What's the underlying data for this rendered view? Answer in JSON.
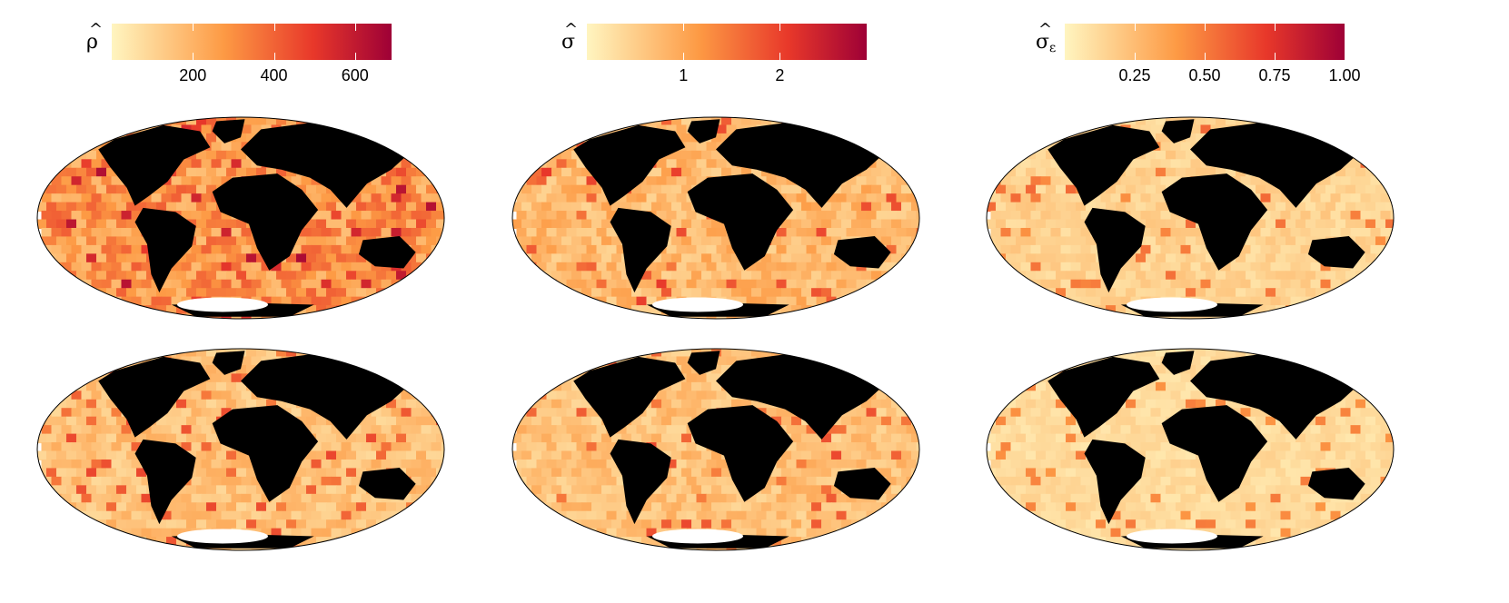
{
  "colorbars": [
    {
      "symbol": "ρ",
      "subscript": "",
      "tick_labels": [
        "200",
        "400",
        "600"
      ],
      "ticks": [
        200,
        400,
        600
      ],
      "min": 0,
      "max": 690
    },
    {
      "symbol": "σ",
      "subscript": "",
      "tick_labels": [
        "1",
        "2"
      ],
      "ticks": [
        1,
        2
      ],
      "min": 0,
      "max": 2.9
    },
    {
      "symbol": "σ",
      "subscript": "ε",
      "tick_labels": [
        "0.25",
        "0.50",
        "0.75",
        "1.00"
      ],
      "ticks": [
        0.25,
        0.5,
        0.75,
        1.0
      ],
      "min": 0,
      "max": 1.0
    }
  ],
  "colors": {
    "scale_low": "#fff5c0",
    "scale_mid": "#fd9a44",
    "scale_high": "#e8382a",
    "scale_max": "#9e0036",
    "land": "#000000",
    "no_data": "#ffffff"
  },
  "projection": "Mollweide",
  "maps": [
    {
      "row": 1,
      "variable": "rho",
      "intensity": 0.55
    },
    {
      "row": 1,
      "variable": "sigma",
      "intensity": 0.35
    },
    {
      "row": 1,
      "variable": "sigma_eps",
      "intensity": 0.2
    },
    {
      "row": 2,
      "variable": "rho",
      "intensity": 0.3
    },
    {
      "row": 2,
      "variable": "sigma",
      "intensity": 0.3
    },
    {
      "row": 2,
      "variable": "sigma_eps",
      "intensity": 0.15
    }
  ]
}
